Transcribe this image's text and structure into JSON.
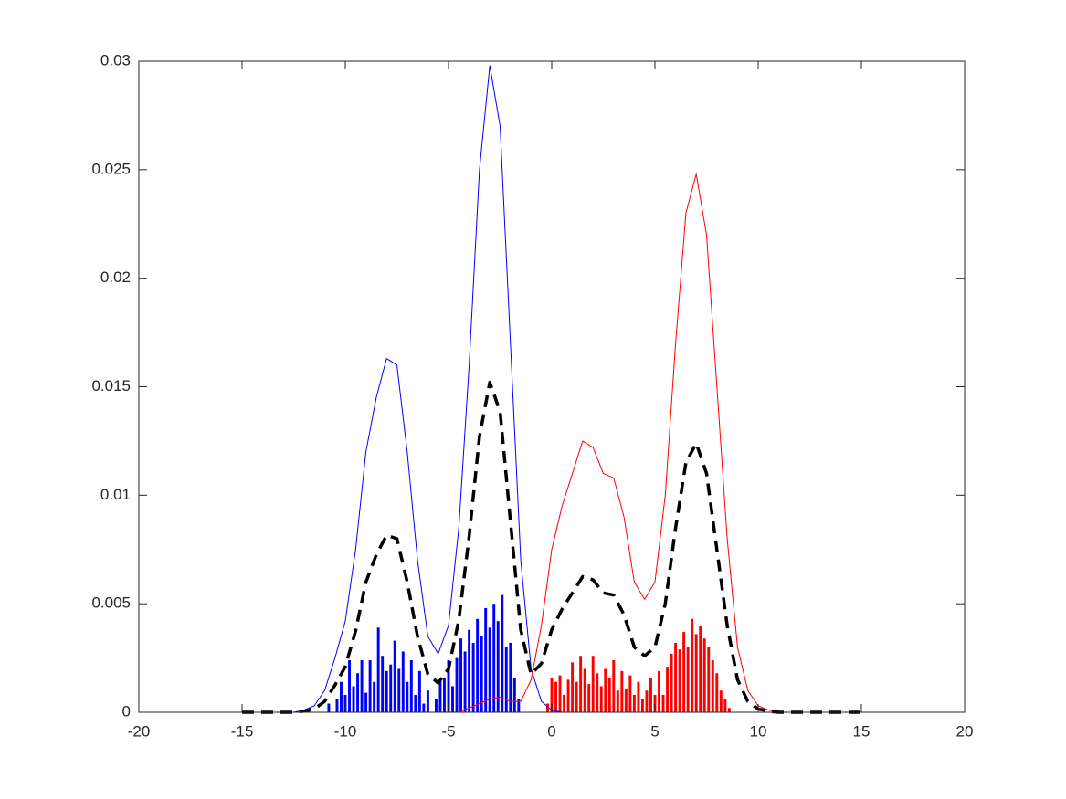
{
  "chart_data": {
    "type": "line",
    "xlim": [
      -20,
      20
    ],
    "xticks": [
      -20,
      -15,
      -10,
      -5,
      0,
      5,
      10,
      15,
      20
    ],
    "ylim": [
      0,
      0.03
    ],
    "yticks": [
      0,
      0.005,
      0.01,
      0.015,
      0.02,
      0.025,
      0.03
    ],
    "x": [
      -15,
      -14.5,
      -14,
      -13.5,
      -13,
      -12.5,
      -12,
      -11.5,
      -11,
      -10.5,
      -10,
      -9.5,
      -9,
      -8.5,
      -8,
      -7.5,
      -7,
      -6.5,
      -6,
      -5.5,
      -5,
      -4.5,
      -4,
      -3.5,
      -3,
      -2.5,
      -2,
      -1.5,
      -1,
      -0.5,
      0,
      0.5,
      1,
      1.5,
      2,
      2.5,
      3,
      3.5,
      4,
      4.5,
      5,
      5.5,
      6,
      6.5,
      7,
      7.5,
      8,
      8.5,
      9,
      9.5,
      10,
      10.5,
      11,
      11.5,
      12,
      12.5,
      13,
      13.5,
      14,
      14.5,
      15
    ],
    "series": [
      {
        "style": "bars",
        "color": "#0000ff",
        "x": [
          -10.8,
          -10.6,
          -10.4,
          -10.2,
          -10,
          -9.8,
          -9.6,
          -9.4,
          -9.2,
          -9,
          -8.8,
          -8.6,
          -8.4,
          -8.2,
          -8,
          -7.8,
          -7.6,
          -7.4,
          -7.2,
          -7,
          -6.8,
          -6.6,
          -6.4,
          -6.2,
          -6,
          -5.8,
          -5.6,
          -5.4,
          -5.2,
          -5,
          -4.8,
          -4.6,
          -4.4,
          -4.2,
          -4,
          -3.8,
          -3.6,
          -3.4,
          -3.2,
          -3,
          -2.8,
          -2.6,
          -2.4,
          -2.2,
          -2,
          -1.8,
          -1.6
        ],
        "values": [
          0.0004,
          0,
          0.0006,
          0.0014,
          0.0008,
          0.0024,
          0.0012,
          0.0018,
          0.0024,
          0.0009,
          0.0024,
          0.0014,
          0.0039,
          0.0026,
          0.0019,
          0.0022,
          0.0033,
          0.002,
          0.0028,
          0.0014,
          0.0024,
          0.0008,
          0.0019,
          0.0004,
          0.001,
          0,
          0.0006,
          0.0015,
          0.0016,
          0.0024,
          0.0012,
          0.0025,
          0.0034,
          0.0028,
          0.0038,
          0.0032,
          0.0043,
          0.0035,
          0.0048,
          0.0039,
          0.005,
          0.0042,
          0.0054,
          0.003,
          0.0032,
          0.0016,
          0.0006
        ]
      },
      {
        "style": "bars",
        "color": "#ff0000",
        "x": [
          -0.2,
          0,
          0.2,
          0.4,
          0.6,
          0.8,
          1,
          1.2,
          1.4,
          1.6,
          1.8,
          2,
          2.2,
          2.4,
          2.6,
          2.8,
          3,
          3.2,
          3.4,
          3.6,
          3.8,
          4,
          4.2,
          4.4,
          4.6,
          4.8,
          5,
          5.2,
          5.4,
          5.6,
          5.8,
          6,
          6.2,
          6.4,
          6.6,
          6.8,
          7,
          7.2,
          7.4,
          7.6,
          7.8,
          8,
          8.2,
          8.4,
          8.6
        ],
        "values": [
          0.0004,
          0.0016,
          0.0014,
          0.0017,
          0.0008,
          0.0015,
          0.0023,
          0.0014,
          0.0026,
          0.002,
          0.0013,
          0.0026,
          0.0018,
          0.0012,
          0.002,
          0.0016,
          0.0024,
          0.001,
          0.0019,
          0.0011,
          0.0017,
          0.0008,
          0.0014,
          0.0006,
          0.001,
          0.0016,
          0.0008,
          0.0019,
          0.0008,
          0.0021,
          0.0027,
          0.0032,
          0.0029,
          0.0037,
          0.003,
          0.0043,
          0.0036,
          0.004,
          0.0034,
          0.003,
          0.0024,
          0.0018,
          0.001,
          0.0006,
          0.0002
        ]
      },
      {
        "style": "solid",
        "color": "#0000ff",
        "values": [
          0,
          0,
          0,
          0,
          0,
          0,
          0.0001,
          0.0003,
          0.001,
          0.0025,
          0.0042,
          0.0075,
          0.012,
          0.0145,
          0.0163,
          0.016,
          0.012,
          0.007,
          0.0035,
          0.0027,
          0.004,
          0.0085,
          0.016,
          0.025,
          0.0298,
          0.027,
          0.017,
          0.007,
          0.002,
          0.0005,
          0.0001,
          0,
          0,
          0,
          0,
          0,
          0,
          0,
          0,
          0,
          0,
          0,
          0,
          0,
          0,
          0,
          0,
          0,
          0,
          0,
          0,
          0,
          0,
          0,
          0,
          0,
          0,
          0,
          0,
          0,
          0
        ]
      },
      {
        "style": "solid",
        "color": "#ff0000",
        "values": [
          0,
          0,
          0,
          0,
          0,
          0,
          0,
          0,
          0,
          0,
          0,
          0,
          0,
          0,
          0,
          0,
          0,
          0,
          0,
          0,
          0,
          0,
          0.0002,
          0.0004,
          0.0006,
          0.0007,
          0.0005,
          0.0005,
          0.0015,
          0.004,
          0.0075,
          0.0095,
          0.011,
          0.0125,
          0.0122,
          0.011,
          0.0108,
          0.009,
          0.006,
          0.0052,
          0.006,
          0.01,
          0.017,
          0.023,
          0.0248,
          0.022,
          0.015,
          0.008,
          0.003,
          0.001,
          0.0003,
          0.0001,
          0,
          0,
          0,
          0,
          0,
          0,
          0,
          0,
          0
        ]
      },
      {
        "style": "dashed",
        "color": "#000000",
        "values": [
          0,
          0,
          0,
          0,
          0,
          0,
          5e-05,
          0.00015,
          0.0005,
          0.00125,
          0.0021,
          0.00375,
          0.006,
          0.00725,
          0.00815,
          0.008,
          0.006,
          0.0035,
          0.00175,
          0.00135,
          0.002,
          0.00425,
          0.0081,
          0.0127,
          0.0152,
          0.01385,
          0.0088,
          0.0038,
          0.00175,
          0.00225,
          0.0038,
          0.00475,
          0.0055,
          0.00625,
          0.0061,
          0.0055,
          0.0054,
          0.0045,
          0.003,
          0.0026,
          0.003,
          0.005,
          0.0085,
          0.0115,
          0.0124,
          0.011,
          0.0075,
          0.004,
          0.0015,
          0.0005,
          0.00015,
          5e-05,
          0,
          0,
          0,
          0,
          0,
          0,
          0,
          0,
          0
        ]
      }
    ]
  }
}
